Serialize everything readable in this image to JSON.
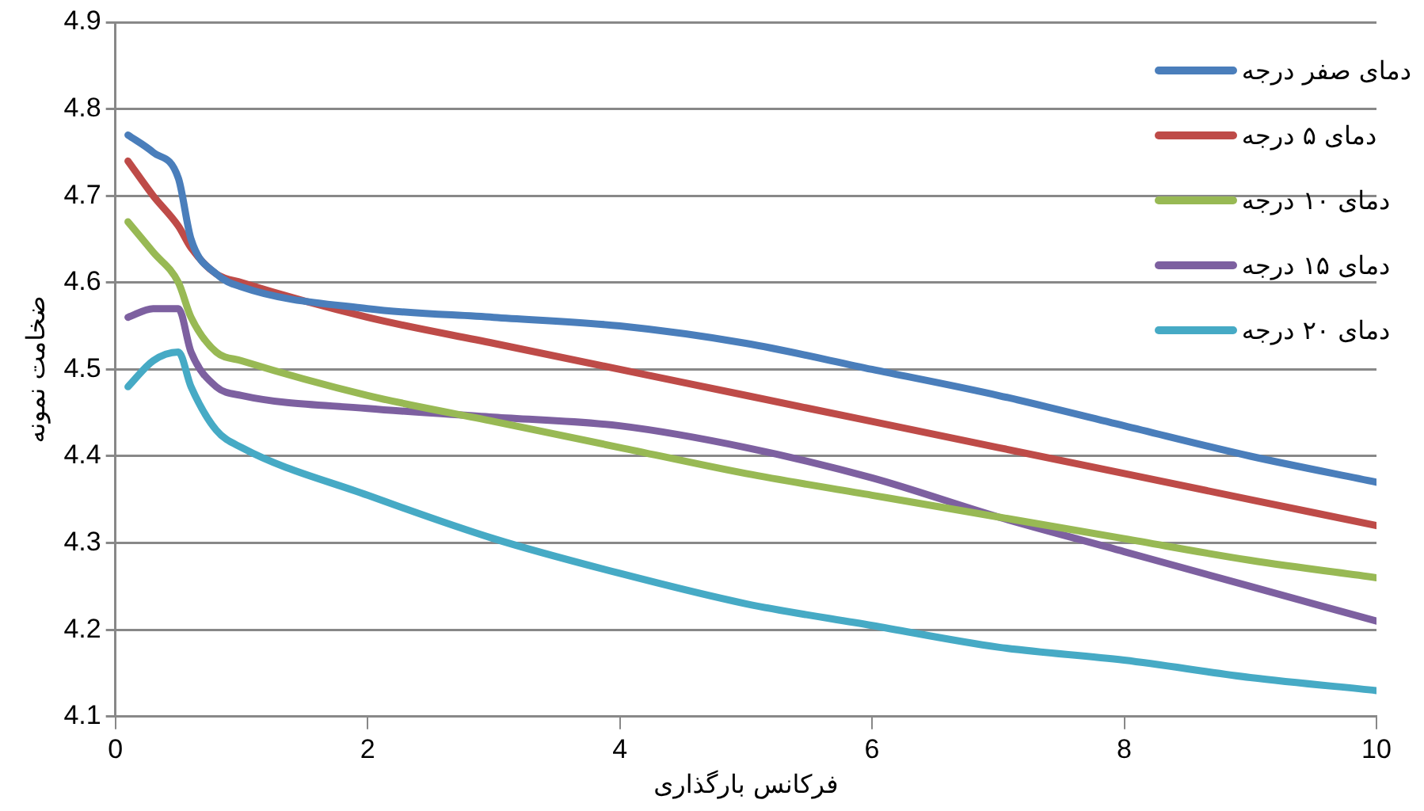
{
  "chart_data": {
    "type": "line",
    "xlabel": "فرکانس بارگذاری",
    "ylabel": "ضخامت نمونه",
    "x": [
      0.1,
      0.3,
      0.5,
      0.6,
      0.8,
      1,
      2,
      3,
      4,
      5,
      6,
      7,
      8,
      9,
      10
    ],
    "xlim": [
      0,
      10
    ],
    "xticks": [
      0,
      2,
      4,
      6,
      8,
      10
    ],
    "ylim": [
      4.1,
      4.9
    ],
    "yticks": [
      4.1,
      4.2,
      4.3,
      4.4,
      4.5,
      4.6,
      4.7,
      4.8,
      4.9
    ],
    "grid": "y",
    "legend": "top right",
    "marker": "none",
    "line_style": "solid",
    "series": [
      {
        "name": "دمای صفر درجه",
        "color": "#4a7ebb",
        "values": [
          4.77,
          4.75,
          4.72,
          4.65,
          4.61,
          4.595,
          4.57,
          4.56,
          4.55,
          4.53,
          4.5,
          4.47,
          4.435,
          4.4,
          4.37
        ]
      },
      {
        "name": "دمای ۵ درجه",
        "color": "#be4b48",
        "values": [
          4.74,
          4.7,
          4.665,
          4.64,
          4.61,
          4.6,
          4.56,
          4.53,
          4.5,
          4.47,
          4.44,
          4.41,
          4.38,
          4.35,
          4.32
        ]
      },
      {
        "name": "دمای ۱۰ درجه",
        "color": "#98b954",
        "values": [
          4.67,
          4.635,
          4.6,
          4.56,
          4.52,
          4.51,
          4.47,
          4.44,
          4.41,
          4.38,
          4.355,
          4.33,
          4.305,
          4.28,
          4.26
        ]
      },
      {
        "name": "دمای ۱۵ درجه",
        "color": "#7d60a0",
        "values": [
          4.56,
          4.57,
          4.57,
          4.52,
          4.48,
          4.47,
          4.455,
          4.445,
          4.435,
          4.41,
          4.375,
          4.33,
          4.29,
          4.25,
          4.21
        ]
      },
      {
        "name": "دمای ۲۰ درجه",
        "color": "#46aac5",
        "values": [
          4.48,
          4.51,
          4.52,
          4.48,
          4.43,
          4.41,
          4.355,
          4.305,
          4.265,
          4.23,
          4.205,
          4.18,
          4.165,
          4.145,
          4.13
        ]
      }
    ]
  }
}
